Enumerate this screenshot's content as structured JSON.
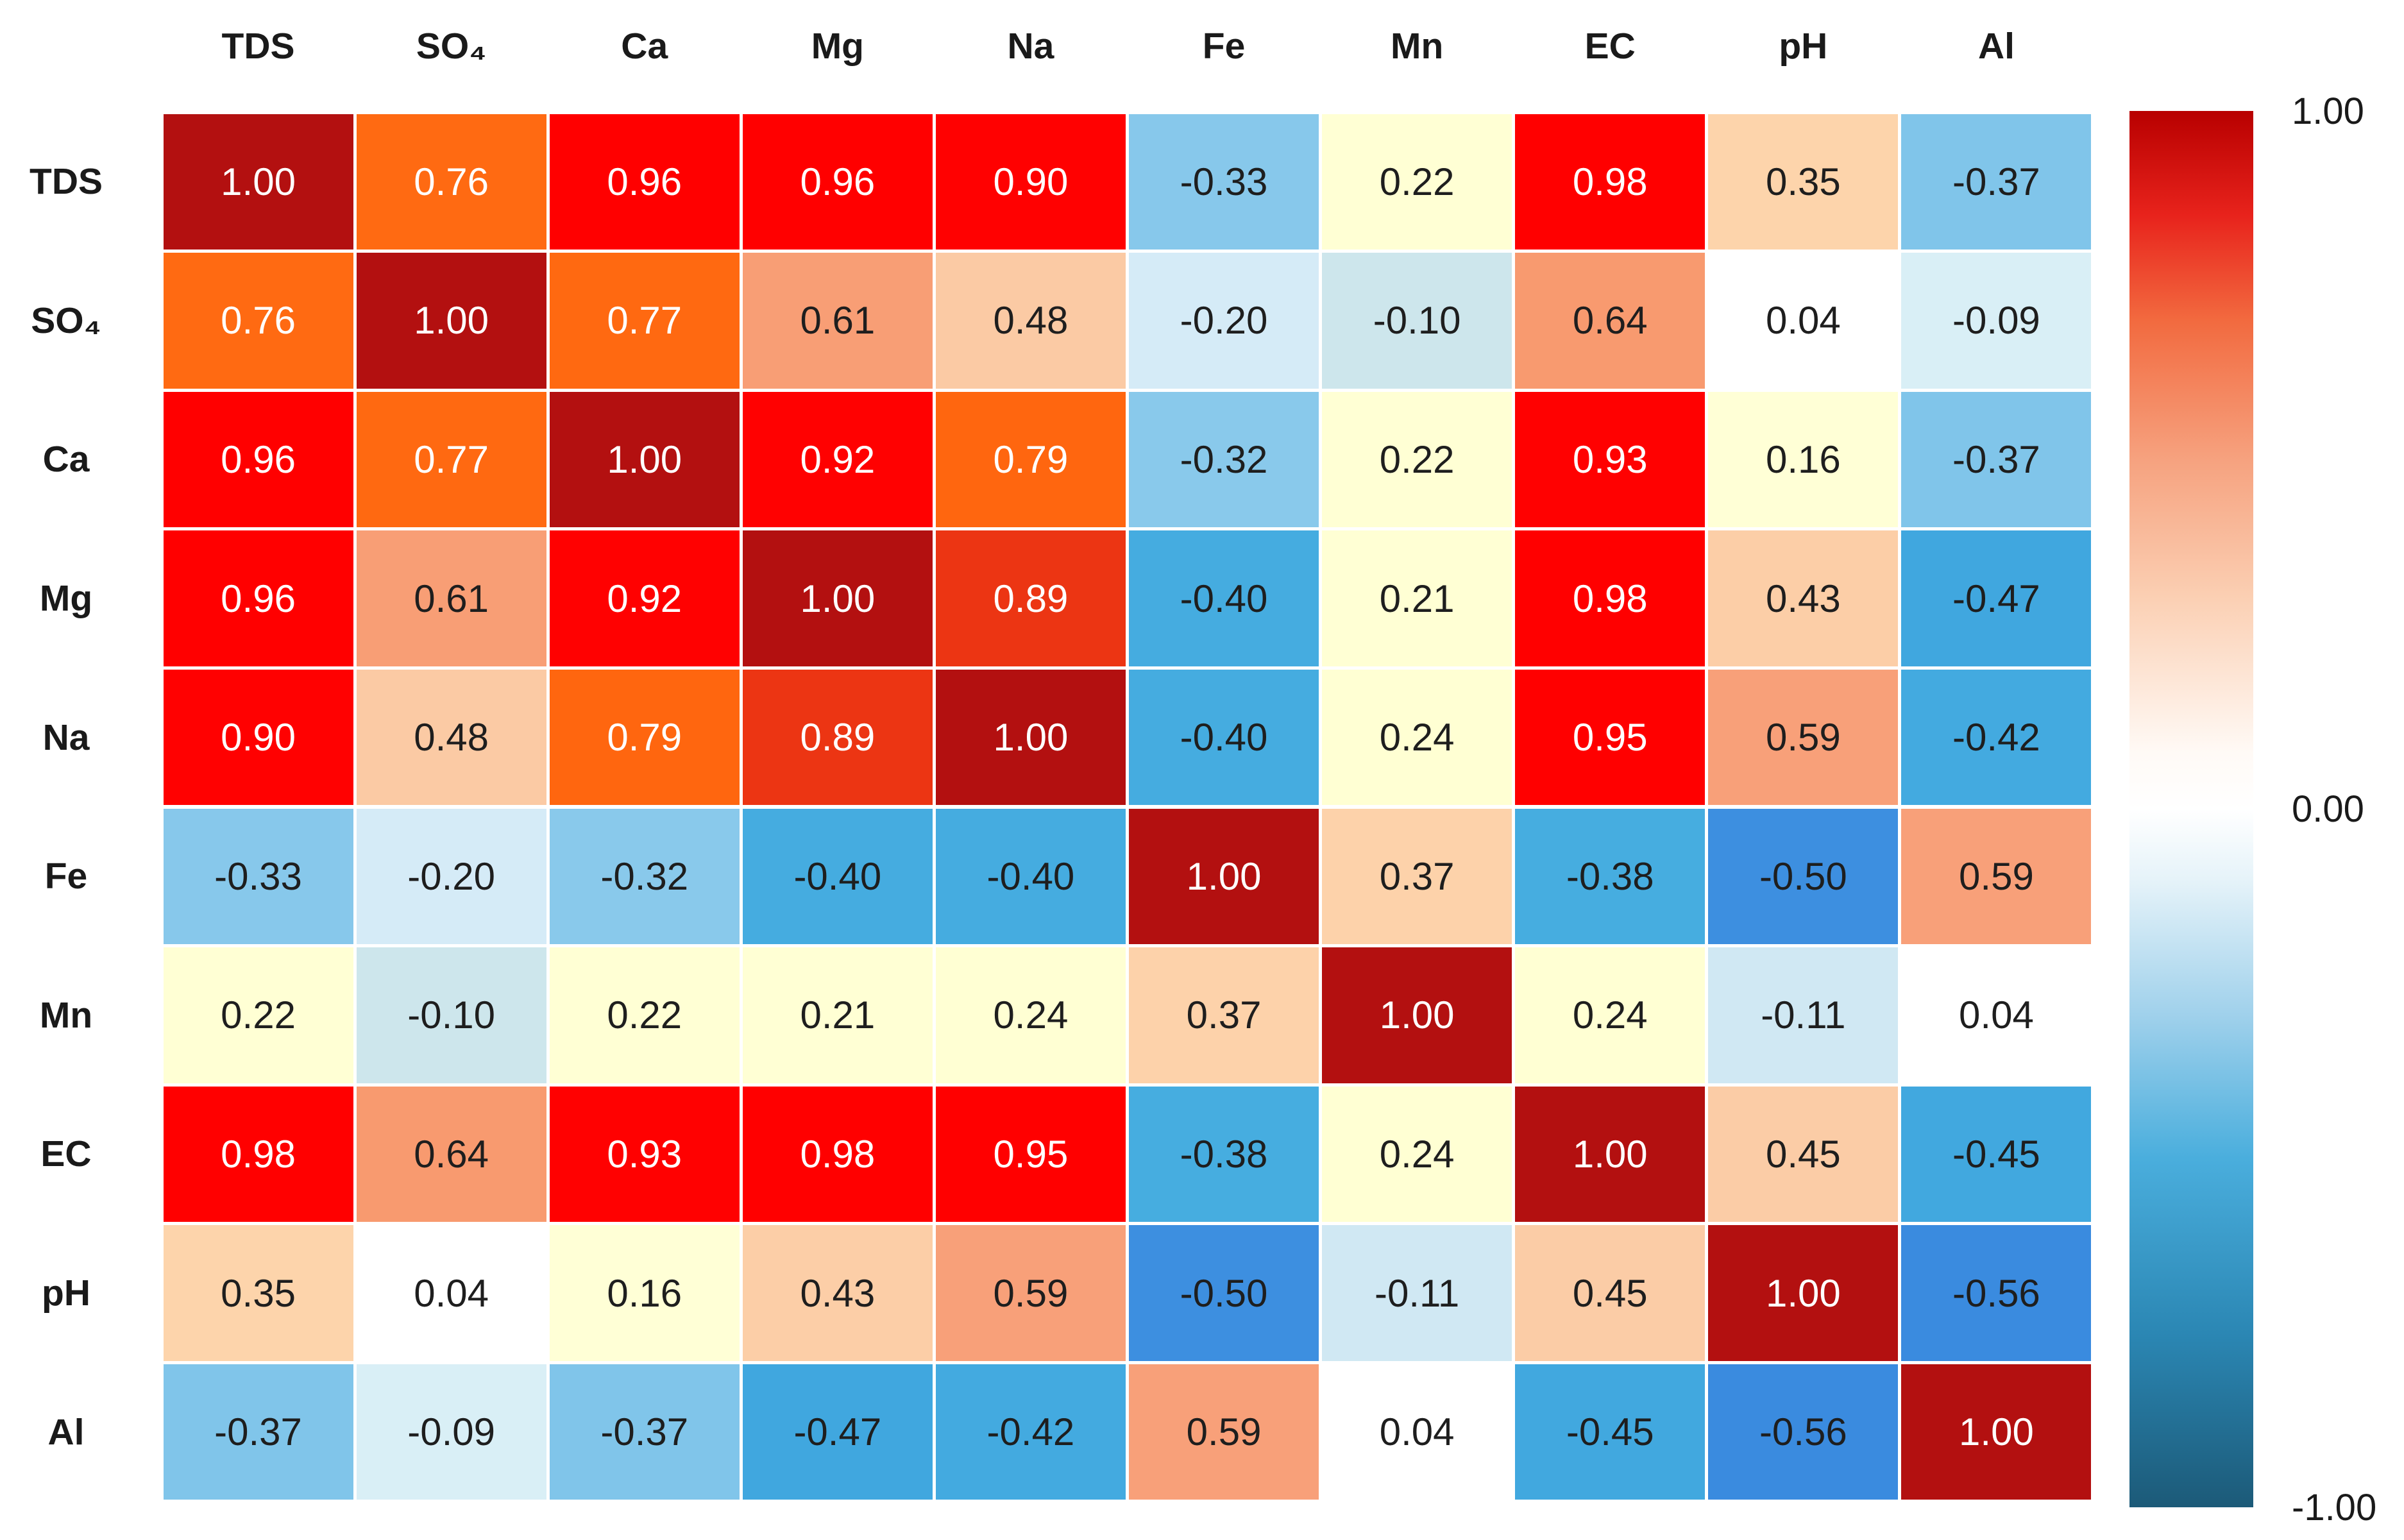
{
  "chart_data": {
    "type": "heatmap",
    "x_labels": [
      "TDS",
      "SO₄",
      "Ca",
      "Mg",
      "Na",
      "Fe",
      "Mn",
      "EC",
      "pH",
      "Al"
    ],
    "y_labels": [
      "TDS",
      "SO₄",
      "Ca",
      "Mg",
      "Na",
      "Fe",
      "Mn",
      "EC",
      "pH",
      "Al"
    ],
    "x_labels_position": "top",
    "values": [
      [
        1.0,
        0.76,
        0.96,
        0.96,
        0.9,
        -0.33,
        0.22,
        0.98,
        0.35,
        -0.37
      ],
      [
        0.76,
        1.0,
        0.77,
        0.61,
        0.48,
        -0.2,
        -0.1,
        0.64,
        0.04,
        -0.09
      ],
      [
        0.96,
        0.77,
        1.0,
        0.92,
        0.79,
        -0.32,
        0.22,
        0.93,
        0.16,
        -0.37
      ],
      [
        0.96,
        0.61,
        0.92,
        1.0,
        0.89,
        -0.4,
        0.21,
        0.98,
        0.43,
        -0.47
      ],
      [
        0.9,
        0.48,
        0.79,
        0.89,
        1.0,
        -0.4,
        0.24,
        0.95,
        0.59,
        -0.42
      ],
      [
        -0.33,
        -0.2,
        -0.32,
        -0.4,
        -0.4,
        1.0,
        0.37,
        -0.38,
        -0.5,
        0.59
      ],
      [
        0.22,
        -0.1,
        0.22,
        0.21,
        0.24,
        0.37,
        1.0,
        0.24,
        -0.11,
        0.04
      ],
      [
        0.98,
        0.64,
        0.93,
        0.98,
        0.95,
        -0.38,
        0.24,
        1.0,
        0.45,
        -0.45
      ],
      [
        0.35,
        0.04,
        0.16,
        0.43,
        0.59,
        -0.5,
        -0.11,
        0.45,
        1.0,
        -0.56
      ],
      [
        -0.37,
        -0.09,
        -0.37,
        -0.47,
        -0.42,
        0.59,
        0.04,
        -0.45,
        -0.56,
        1.0
      ]
    ],
    "zlim": [
      -1,
      1
    ],
    "grid": false,
    "cell_colormap": [
      [
        -0.56,
        "#3a8bdf"
      ],
      [
        -0.5,
        "#3d8fe0"
      ],
      [
        -0.47,
        "#40a7df"
      ],
      [
        -0.38,
        "#46ade0"
      ],
      [
        -0.37,
        "#80c5ea"
      ],
      [
        -0.32,
        "#89c9eb"
      ],
      [
        -0.2,
        "#d5ebf7"
      ],
      [
        -0.11,
        "#d0e8f3"
      ],
      [
        -0.1,
        "#cde6ec"
      ],
      [
        -0.09,
        "#d9eff6"
      ],
      [
        0.04,
        "#ffffff"
      ],
      [
        0.16,
        "#ffffd6"
      ],
      [
        0.24,
        "#ffffd3"
      ],
      [
        0.35,
        "#fdd4ab"
      ],
      [
        0.48,
        "#fbcaa4"
      ],
      [
        0.59,
        "#f8a079"
      ],
      [
        0.64,
        "#f89a6f"
      ],
      [
        0.76,
        "#ff6a12"
      ],
      [
        0.79,
        "#ff660f"
      ],
      [
        0.89,
        "#ec3513"
      ],
      [
        0.9,
        "#ff0101"
      ],
      [
        0.98,
        "#ff0000"
      ],
      [
        1.0,
        "#b31010"
      ]
    ],
    "text_colors": {
      "on_dark": "#ffffff",
      "on_light": "#1e1e1e"
    },
    "colorbar": {
      "position": "right",
      "ticks": [
        1,
        0,
        -1
      ],
      "stops": [
        [
          1.0,
          "#b80000"
        ],
        [
          0.85,
          "#e8231c"
        ],
        [
          0.7,
          "#f26a3f"
        ],
        [
          0.5,
          "#f6a27f"
        ],
        [
          0.3,
          "#fbd0b4"
        ],
        [
          0.08,
          "#fffaf6"
        ],
        [
          0.0,
          "#ffffff"
        ],
        [
          -0.1,
          "#e6f3f9"
        ],
        [
          -0.3,
          "#9ed0eb"
        ],
        [
          -0.5,
          "#4aaedd"
        ],
        [
          -0.75,
          "#2b87b4"
        ],
        [
          -1.0,
          "#1c5a78"
        ]
      ]
    }
  }
}
